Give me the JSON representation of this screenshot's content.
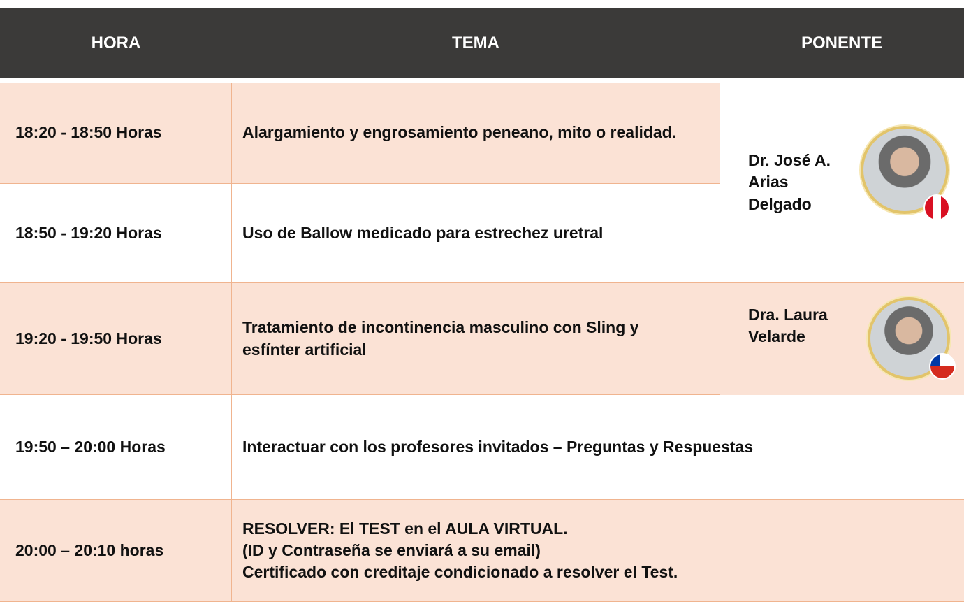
{
  "table": {
    "headers": [
      "HORA",
      "TEMA",
      "PONENTE"
    ],
    "rows": [
      {
        "hora": "18:20 - 18:50 Horas",
        "tema": [
          "Alargamiento y engrosamiento peneano, mito o realidad."
        ]
      },
      {
        "hora": "18:50 - 19:20 Horas",
        "tema": [
          "Uso de Ballow medicado para estrechez uretral"
        ]
      },
      {
        "hora": "19:20 - 19:50 Horas",
        "tema": [
          "Tratamiento de incontinencia masculino con Sling y esfínter artificial"
        ]
      },
      {
        "hora": "19:50 – 20:00 Horas",
        "tema": [
          "Interactuar con los profesores invitados – Preguntas y Respuestas"
        ]
      },
      {
        "hora": "20:00 – 20:10 horas",
        "tema": [
          "RESOLVER: El TEST en el AULA VIRTUAL.",
          "(ID y Contraseña se enviará a su email)",
          "Certificado con creditaje condicionado a resolver el Test."
        ]
      }
    ],
    "ponentes": [
      {
        "lines": [
          "Dr. José A.",
          "Arias",
          "Delgado"
        ]
      },
      {
        "lines": [
          "Dra. Laura",
          "Velarde"
        ]
      }
    ]
  }
}
